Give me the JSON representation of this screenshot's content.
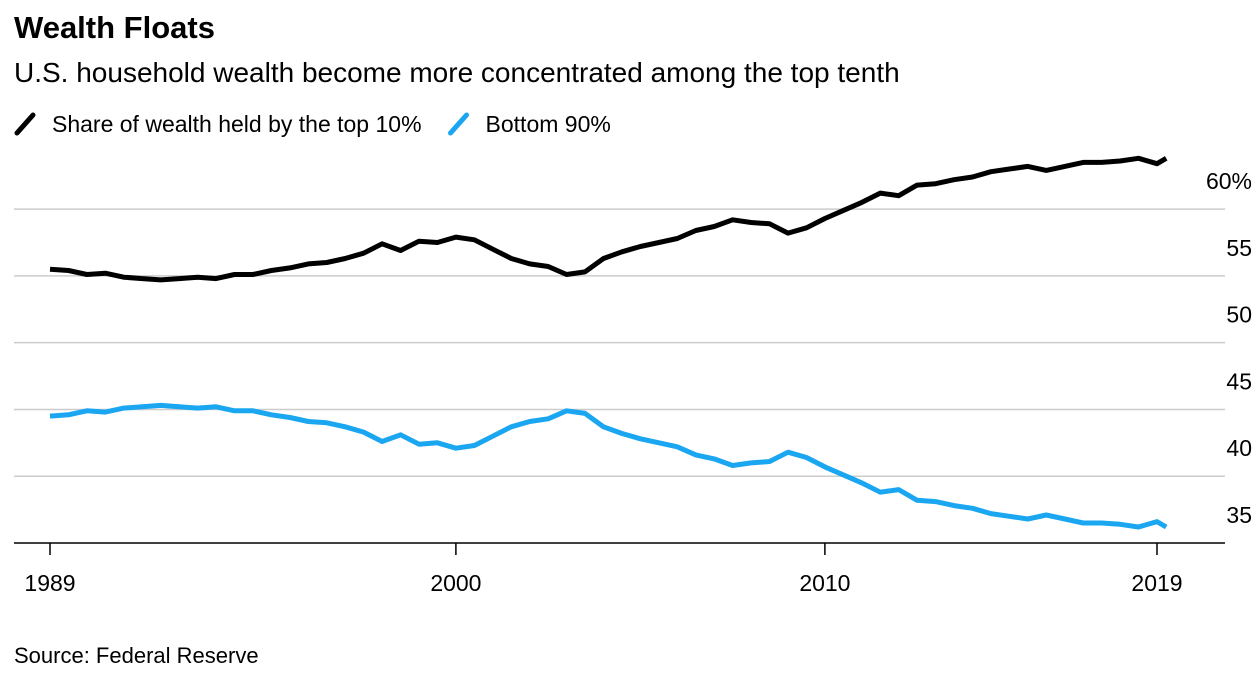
{
  "chart_data": {
    "type": "line",
    "title": "Wealth Floats",
    "subtitle": "U.S. household wealth become more concentrated among the top tenth",
    "source": "Source: Federal Reserve",
    "x": [
      1989.0,
      1989.5,
      1990.0,
      1990.5,
      1991.0,
      1991.5,
      1992.0,
      1992.5,
      1993.0,
      1993.5,
      1994.0,
      1994.5,
      1995.0,
      1995.5,
      1996.0,
      1996.5,
      1997.0,
      1997.5,
      1998.0,
      1998.5,
      1999.0,
      1999.5,
      2000.0,
      2000.5,
      2001.0,
      2001.5,
      2002.0,
      2002.5,
      2003.0,
      2003.5,
      2004.0,
      2004.5,
      2005.0,
      2005.5,
      2006.0,
      2006.5,
      2007.0,
      2007.5,
      2008.0,
      2008.5,
      2009.0,
      2009.5,
      2010.0,
      2010.5,
      2011.0,
      2011.5,
      2012.0,
      2012.5,
      2013.0,
      2013.5,
      2014.0,
      2014.5,
      2015.0,
      2015.5,
      2016.0,
      2016.5,
      2017.0,
      2017.5,
      2018.0,
      2018.5,
      2019.0,
      2019.25
    ],
    "series": [
      {
        "name": "Share of wealth held by the top 10%",
        "color": "#000000",
        "values": [
          55.5,
          55.4,
          55.1,
          55.2,
          54.9,
          54.8,
          54.7,
          54.8,
          54.9,
          54.8,
          55.1,
          55.1,
          55.4,
          55.6,
          55.9,
          56.0,
          56.3,
          56.7,
          57.4,
          56.9,
          57.6,
          57.5,
          57.9,
          57.7,
          57.0,
          56.3,
          55.9,
          55.7,
          55.1,
          55.3,
          56.3,
          56.8,
          57.2,
          57.5,
          57.8,
          58.4,
          58.7,
          59.2,
          59.0,
          58.9,
          58.2,
          58.6,
          59.3,
          59.9,
          60.5,
          61.2,
          61.0,
          61.8,
          61.9,
          62.2,
          62.4,
          62.8,
          63.0,
          63.2,
          62.9,
          63.2,
          63.5,
          63.5,
          63.6,
          63.8,
          63.4,
          63.8
        ]
      },
      {
        "name": "Bottom 90%",
        "color": "#1aa6f0",
        "values": [
          44.5,
          44.6,
          44.9,
          44.8,
          45.1,
          45.2,
          45.3,
          45.2,
          45.1,
          45.2,
          44.9,
          44.9,
          44.6,
          44.4,
          44.1,
          44.0,
          43.7,
          43.3,
          42.6,
          43.1,
          42.4,
          42.5,
          42.1,
          42.3,
          43.0,
          43.7,
          44.1,
          44.3,
          44.9,
          44.7,
          43.7,
          43.2,
          42.8,
          42.5,
          42.2,
          41.6,
          41.3,
          40.8,
          41.0,
          41.1,
          41.8,
          41.4,
          40.7,
          40.1,
          39.5,
          38.8,
          39.0,
          38.2,
          38.1,
          37.8,
          37.6,
          37.2,
          37.0,
          36.8,
          37.1,
          36.8,
          36.5,
          36.5,
          36.4,
          36.2,
          36.6,
          36.2
        ]
      }
    ],
    "xlim": [
      1989,
      2019
    ],
    "xticks": [
      1989,
      2000,
      2010,
      2019
    ],
    "ylim": [
      35,
      64.5
    ],
    "yticks": [
      35,
      40,
      45,
      50,
      55,
      {
        "value": 60,
        "label": "60%"
      }
    ],
    "grid": true
  }
}
